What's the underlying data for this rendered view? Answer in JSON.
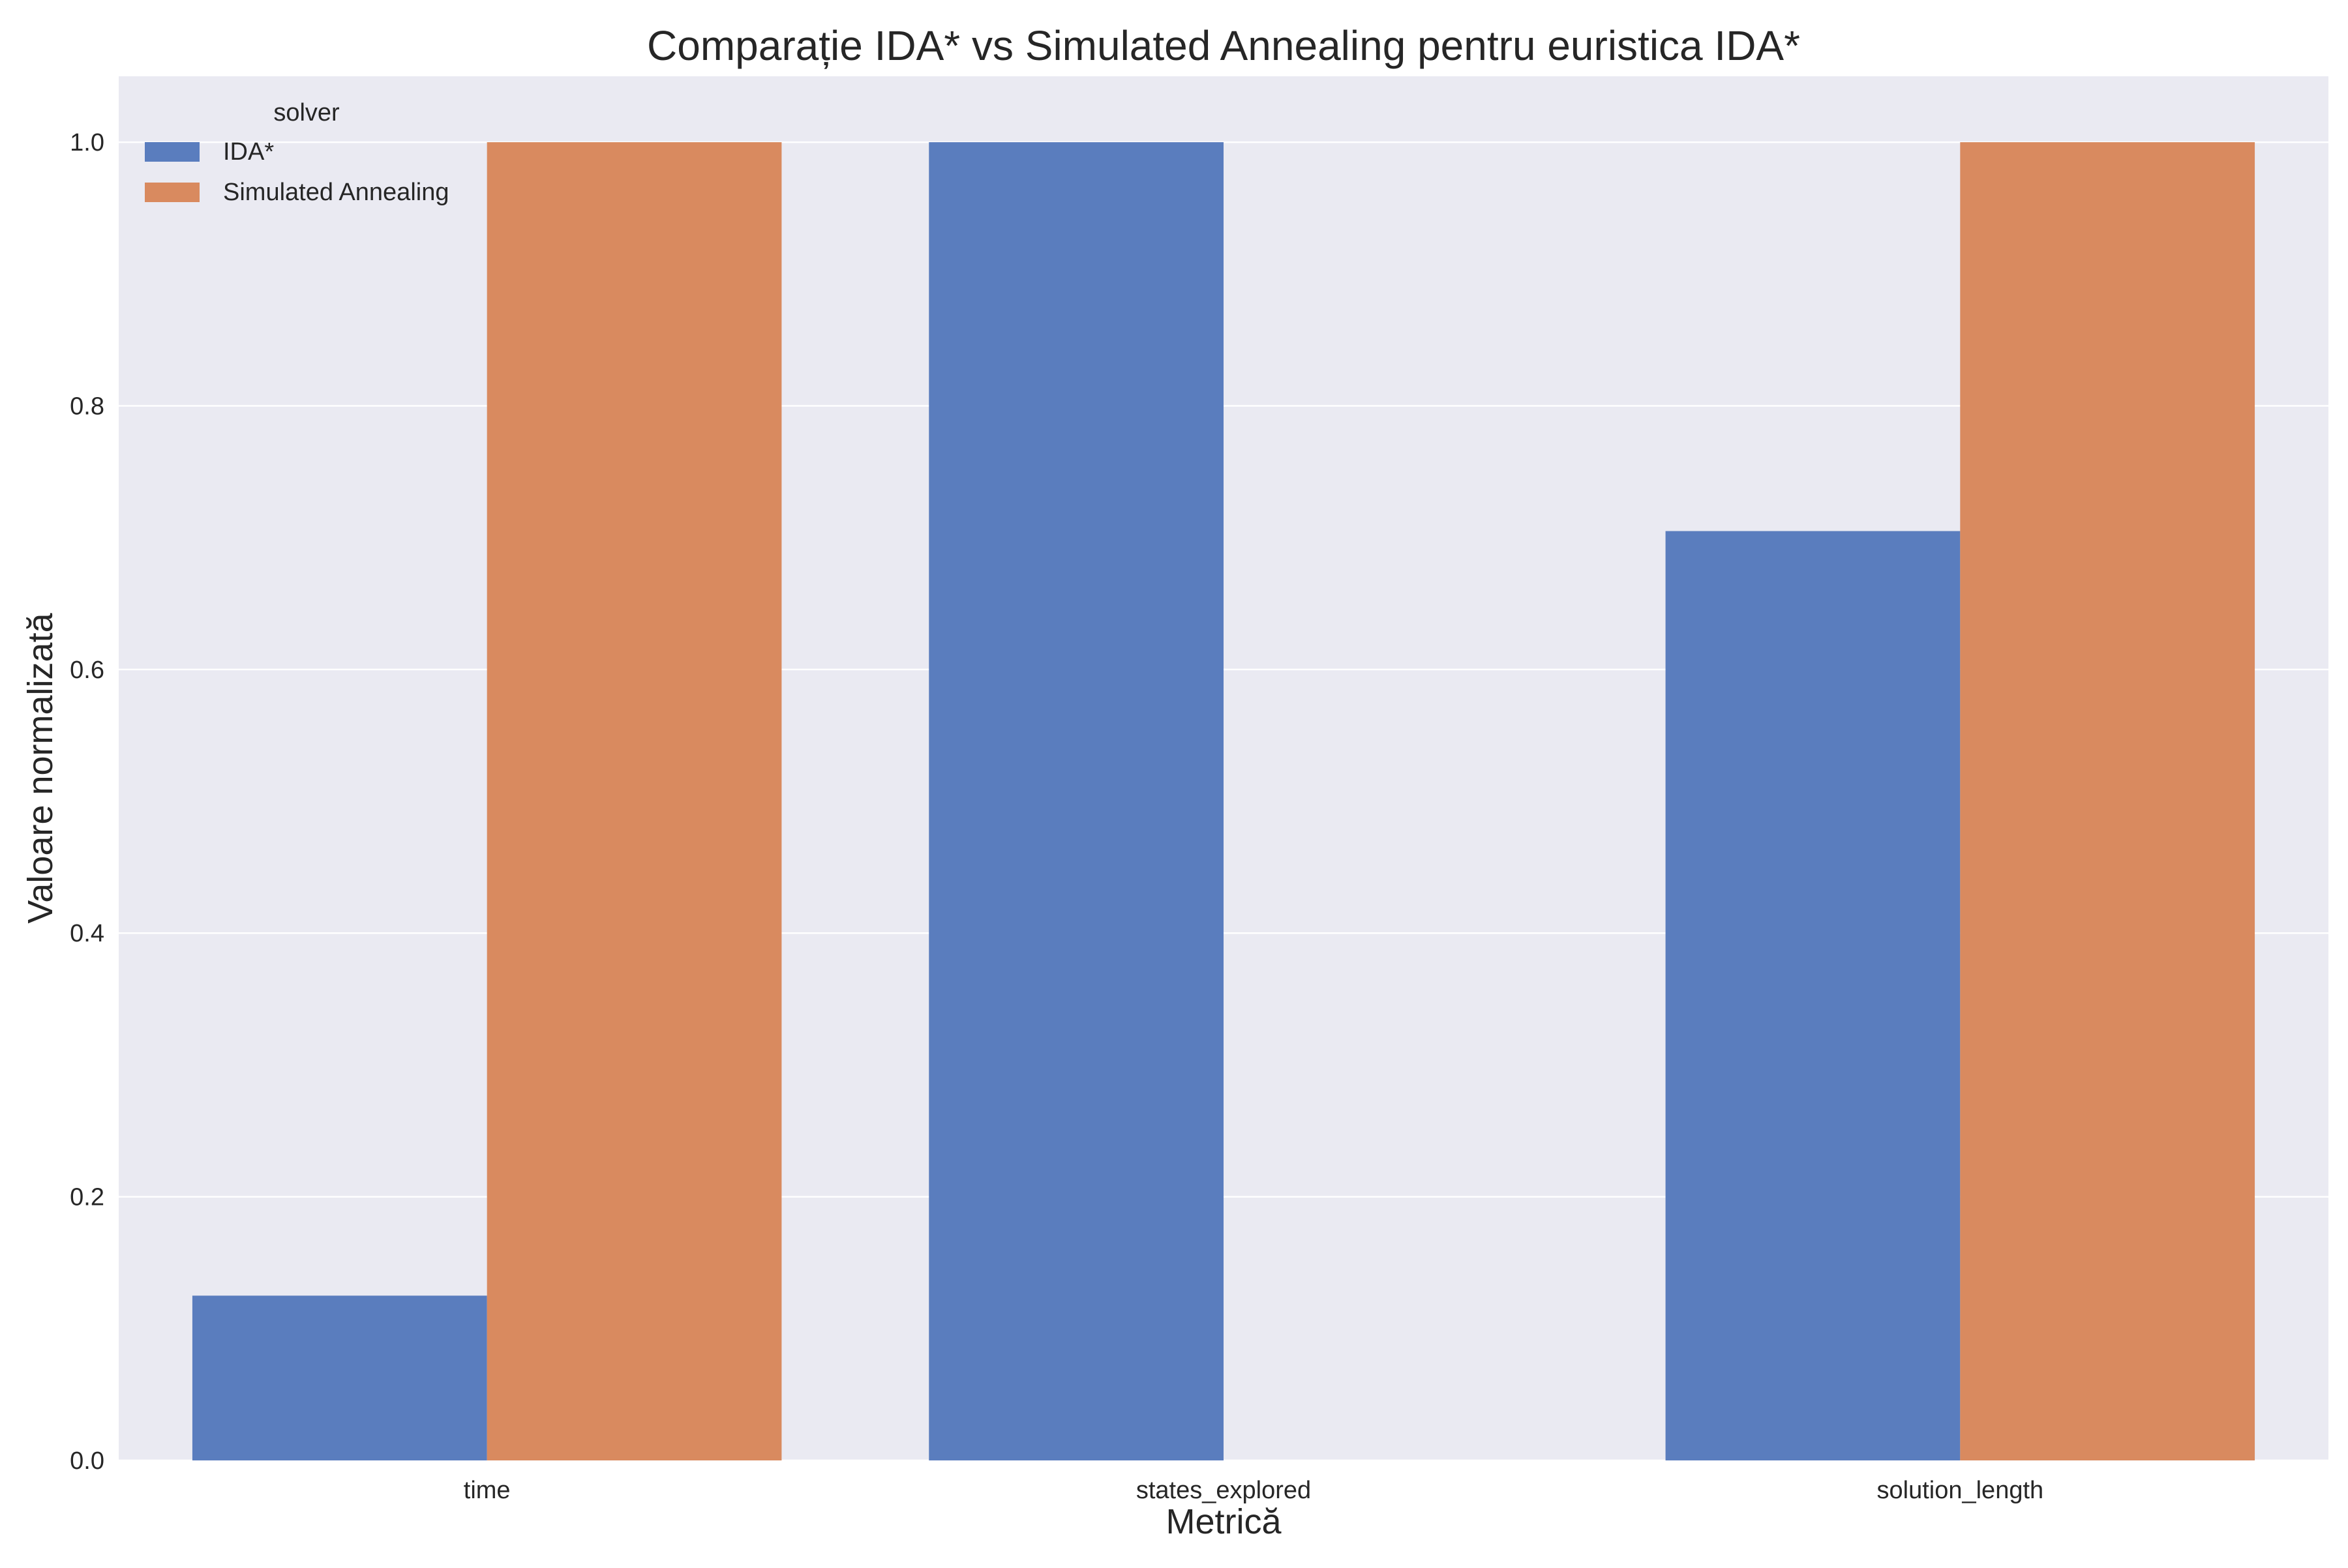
{
  "chart_data": {
    "type": "bar",
    "title": "Comparație IDA* vs Simulated Annealing pentru euristica IDA*",
    "xlabel": "Metrică",
    "ylabel": "Valoare normalizată",
    "categories": [
      "time",
      "states_explored",
      "solution_length"
    ],
    "series": [
      {
        "name": "IDA*",
        "values": [
          0.125,
          1.0,
          0.705
        ],
        "color": "#5a7dbe"
      },
      {
        "name": "Simulated Annealing",
        "values": [
          1.0,
          0.0,
          1.0
        ],
        "color": "#d98a5f"
      }
    ],
    "ylim": [
      0,
      1.05
    ],
    "yticks": [
      "0.0",
      "0.2",
      "0.4",
      "0.6",
      "0.8",
      "1.0"
    ],
    "grid": true,
    "legend": {
      "title": "solver",
      "placement": "top-left"
    },
    "background": "#eaeaf2",
    "grid_color": "#ffffff"
  }
}
